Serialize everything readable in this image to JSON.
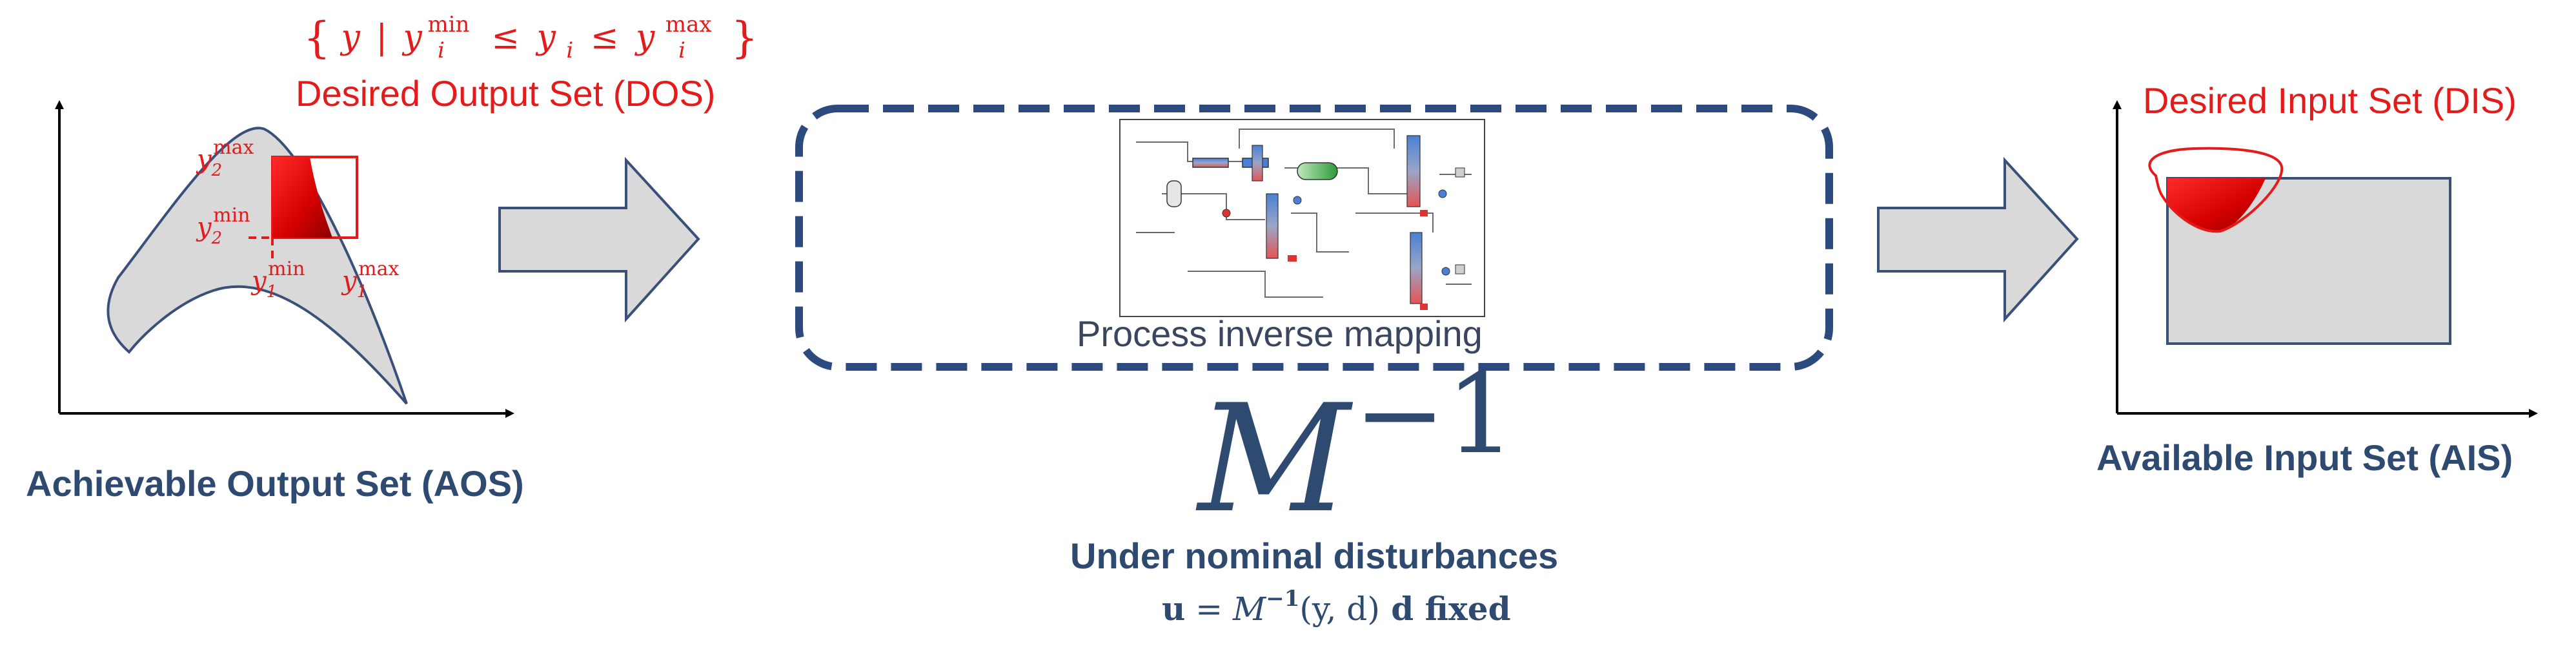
{
  "colors": {
    "red": "#e41b1b",
    "navy": "#2e4a70",
    "dash_box": "#2c4a7e",
    "grey_fill": "#d9d9d9",
    "outline": "#3a4f7a"
  },
  "left_panel": {
    "set_notation": "{y | yᵢmin ≤ yᵢ ≤ yᵢmax}",
    "set_notation_parts": {
      "open": "{",
      "y": "y",
      "bar": "|",
      "yi": "y",
      "sub_i": "i",
      "min": "min",
      "leq": "≤",
      "max": "max",
      "close": "}"
    },
    "dos_label": "Desired Output Set (DOS)",
    "aos_label": "Achievable Output Set (AOS)",
    "y2max_label": {
      "base": "y",
      "sub": "2",
      "sup": "max"
    },
    "y2min_label": {
      "base": "y",
      "sub": "2",
      "sup": "min"
    },
    "y1min_label": {
      "base": "y",
      "sub": "1",
      "sup": "min"
    },
    "y1max_label": {
      "base": "y",
      "sub": "1",
      "sup": "max"
    }
  },
  "center_panel": {
    "caption": "Process inverse mapping",
    "big_symbol": {
      "base": "M",
      "exp": "−1"
    },
    "condition_title": "Under nominal disturbances",
    "equation": {
      "u": "u",
      "eq": " = ",
      "M": "M",
      "exp": "−1",
      "args": "(y, d)",
      "tail": " d fixed"
    }
  },
  "right_panel": {
    "dis_label": "Desired Input Set (DIS)",
    "ais_label": "Available Input Set (AIS)"
  }
}
